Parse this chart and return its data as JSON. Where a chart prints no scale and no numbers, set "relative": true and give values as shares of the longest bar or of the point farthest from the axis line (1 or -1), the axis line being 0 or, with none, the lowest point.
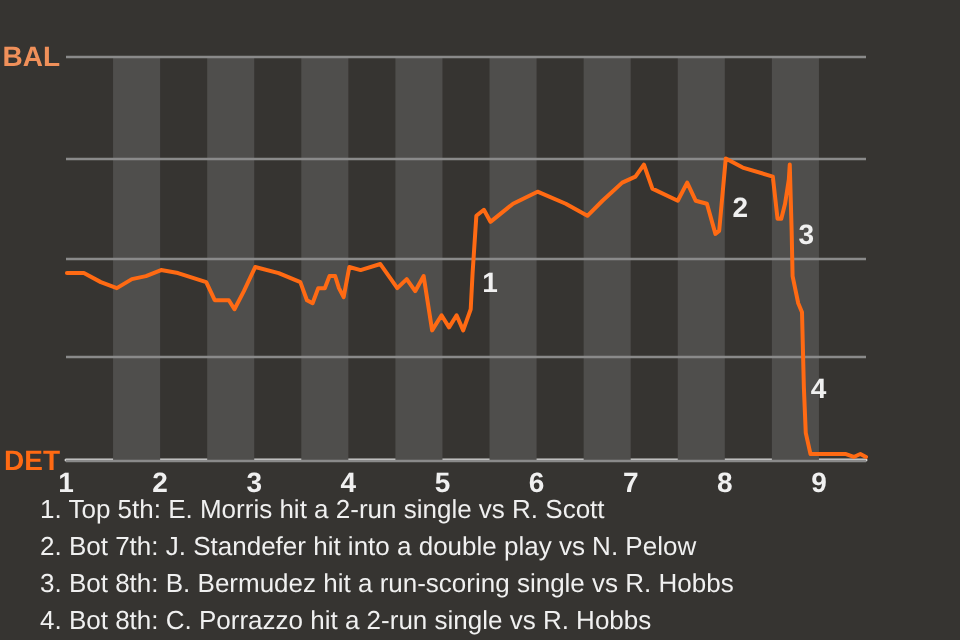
{
  "chart_data": {
    "type": "line",
    "relative": true,
    "x": [
      1.01,
      1.19,
      1.37,
      1.54,
      1.7,
      1.85,
      2.01,
      2.19,
      2.49,
      2.58,
      2.73,
      2.79,
      2.89,
      3.01,
      3.26,
      3.49,
      3.56,
      3.62,
      3.68,
      3.75,
      3.8,
      3.86,
      3.9,
      3.95,
      4.01,
      4.13,
      4.34,
      4.52,
      4.62,
      4.71,
      4.8,
      4.89,
      4.99,
      5.07,
      5.15,
      5.22,
      5.3,
      5.32,
      5.36,
      5.44,
      5.51,
      5.75,
      6.01,
      6.31,
      6.54,
      6.7,
      6.91,
      7.05,
      7.14,
      7.23,
      7.5,
      7.6,
      7.69,
      7.81,
      7.9,
      7.94,
      8.01,
      8.19,
      8.51,
      8.56,
      8.6,
      8.64,
      8.68,
      8.69,
      8.71,
      8.72,
      8.78,
      8.82,
      8.84,
      8.86,
      8.91,
      8.99,
      9.17,
      9.28,
      9.37,
      9.44,
      9.5
    ],
    "series": [
      {
        "color": "#ff6a13",
        "values": [
          0.62,
          0.62,
          0.59,
          0.57,
          0.6,
          0.61,
          0.63,
          0.62,
          0.59,
          0.53,
          0.53,
          0.5,
          0.56,
          0.64,
          0.62,
          0.59,
          0.53,
          0.52,
          0.57,
          0.57,
          0.61,
          0.61,
          0.57,
          0.54,
          0.64,
          0.63,
          0.65,
          0.57,
          0.6,
          0.56,
          0.61,
          0.43,
          0.48,
          0.44,
          0.48,
          0.43,
          0.5,
          0.62,
          0.81,
          0.83,
          0.79,
          0.85,
          0.89,
          0.85,
          0.81,
          0.86,
          0.92,
          0.94,
          0.98,
          0.9,
          0.86,
          0.92,
          0.86,
          0.85,
          0.75,
          0.76,
          1,
          0.97,
          0.94,
          0.8,
          0.8,
          0.85,
          0.93,
          0.98,
          0.76,
          0.61,
          0.52,
          0.49,
          0.24,
          0.09,
          0.02,
          0.02,
          0.02,
          0.02,
          0.01,
          0.02,
          0.01
        ]
      }
    ],
    "xlim": [
      1,
      9.5
    ],
    "xticks": [
      1,
      2,
      3,
      4,
      5,
      6,
      7,
      8,
      9
    ],
    "ref_lines": [
      {
        "axis": "y",
        "value": 0,
        "label": "DET",
        "color": "#8a8a8a"
      },
      {
        "axis": "y",
        "value": 0.335,
        "label": null,
        "color": "#8a8a8a"
      },
      {
        "axis": "y",
        "value": 0.67,
        "label": null,
        "color": "#8a8a8a"
      },
      {
        "axis": "y",
        "value": 1.005,
        "label": null,
        "color": "#8a8a8a"
      },
      {
        "axis": "y",
        "value": 1.34,
        "label": "BAL",
        "color": "#8a8a8a"
      }
    ],
    "marker": "none",
    "line_style": "solid",
    "bands": [
      {
        "axis": "x",
        "from": 1.5,
        "to": 2,
        "color": "#4f4e4c"
      },
      {
        "axis": "x",
        "from": 2.5,
        "to": 3,
        "color": "#4f4e4c"
      },
      {
        "axis": "x",
        "from": 3.5,
        "to": 4,
        "color": "#4f4e4c"
      },
      {
        "axis": "x",
        "from": 4.5,
        "to": 5,
        "color": "#4f4e4c"
      },
      {
        "axis": "x",
        "from": 5.5,
        "to": 6,
        "color": "#4f4e4c"
      },
      {
        "axis": "x",
        "from": 6.5,
        "to": 7,
        "color": "#4f4e4c"
      },
      {
        "axis": "x",
        "from": 7.5,
        "to": 8,
        "color": "#4f4e4c"
      },
      {
        "axis": "x",
        "from": 8.5,
        "to": 9,
        "color": "#4f4e4c"
      }
    ],
    "annotations": [
      {
        "text": "1",
        "x": 5.38,
        "y": 0.59
      },
      {
        "text": "2",
        "x": 8.04,
        "y": 0.84
      },
      {
        "text": "3",
        "x": 8.74,
        "y": 0.75
      },
      {
        "text": "4",
        "x": 8.87,
        "y": 0.24
      },
      "1. Top 5th: E. Morris hit a 2-run single vs R. Scott",
      "2. Bot 7th: J. Standefer hit into a double play vs N. Pelow",
      "3. Bot 8th: B. Bermudez hit a run-scoring single vs R. Hobbs",
      "4. Bot 8th: C. Porrazzo hit a 2-run single vs R. Hobbs"
    ]
  }
}
